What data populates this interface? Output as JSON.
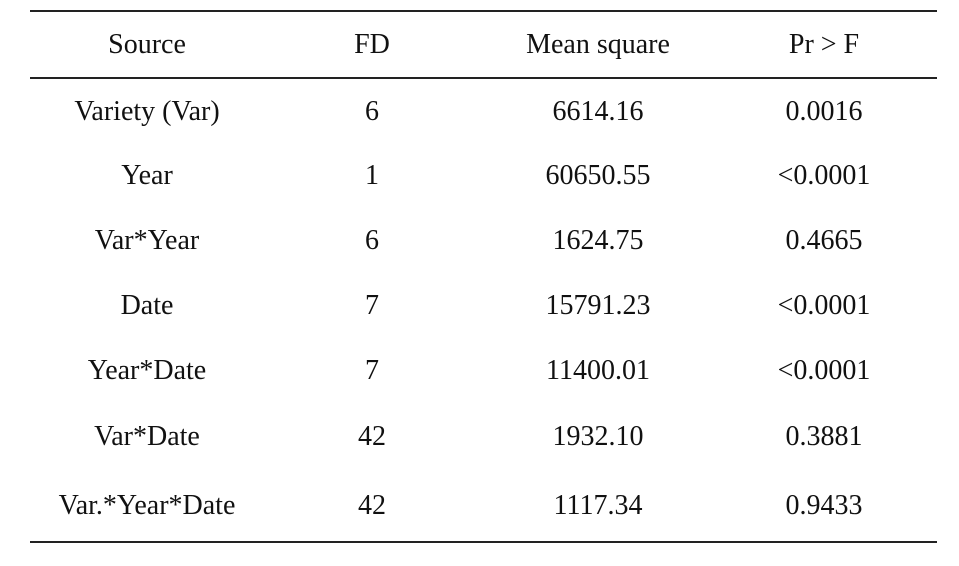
{
  "table": {
    "header": [
      "Source",
      "FD",
      "Mean square",
      "Pr > F"
    ],
    "rows": [
      [
        "Variety (Var)",
        "6",
        "6614.16",
        "0.0016"
      ],
      [
        "Year",
        "1",
        "60650.55",
        "<0.0001"
      ],
      [
        "Var*Year",
        "6",
        "1624.75",
        "0.4665"
      ],
      [
        "Date",
        "7",
        "15791.23",
        "<0.0001"
      ],
      [
        "Year*Date",
        "7",
        "11400.01",
        "<0.0001"
      ],
      [
        "Var*Date",
        "42",
        "1932.10",
        "0.3881"
      ],
      [
        "Var.*Year*Date",
        "42",
        "1117.34",
        "0.9433"
      ]
    ]
  }
}
